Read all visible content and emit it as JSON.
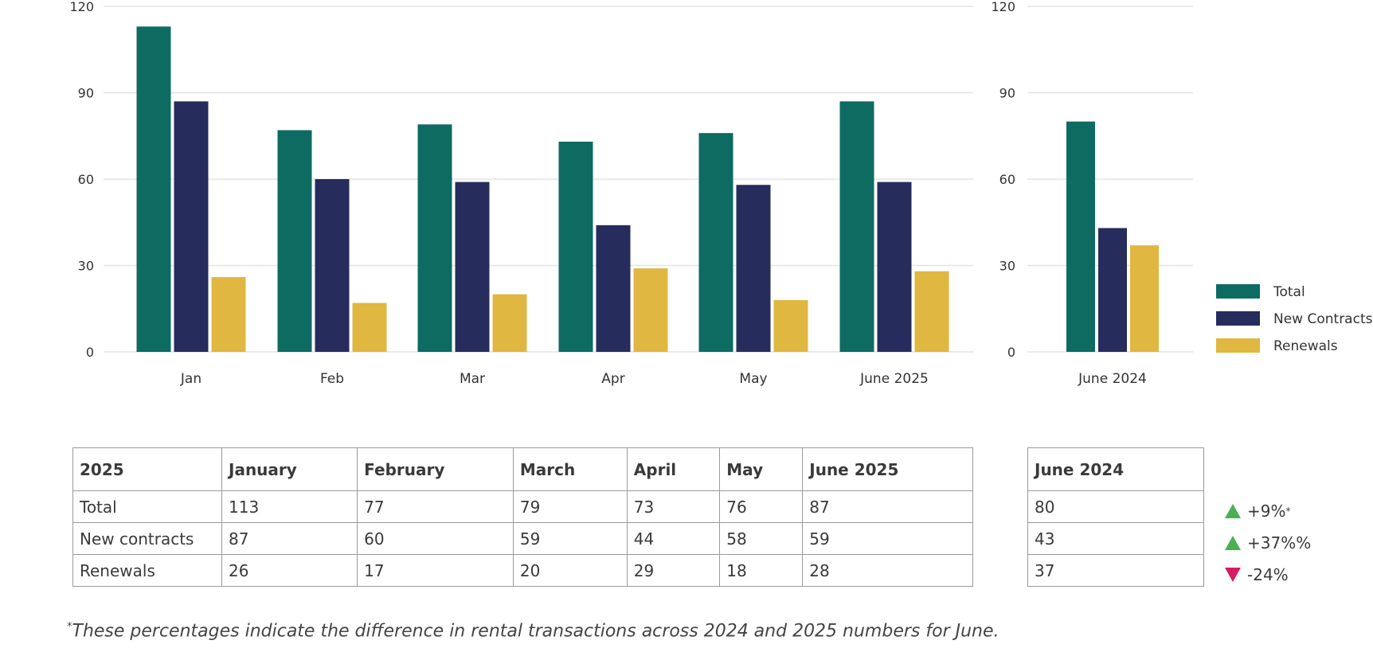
{
  "chart_data": [
    {
      "type": "bar",
      "categories": [
        "Jan",
        "Feb",
        "Mar",
        "Apr",
        "May",
        "June 2025"
      ],
      "series": [
        {
          "name": "Total",
          "values": [
            113,
            77,
            79,
            73,
            76,
            87
          ]
        },
        {
          "name": "New Contracts",
          "values": [
            87,
            60,
            59,
            44,
            58,
            59
          ]
        },
        {
          "name": "Renewals",
          "values": [
            26,
            17,
            20,
            29,
            18,
            28
          ]
        }
      ],
      "yticks": [
        "0",
        "30",
        "60",
        "90",
        "120"
      ],
      "ylim": [
        0,
        120
      ],
      "grid": true
    },
    {
      "type": "bar",
      "categories": [
        "June 2024"
      ],
      "series": [
        {
          "name": "Total",
          "values": [
            80
          ]
        },
        {
          "name": "New Contracts",
          "values": [
            43
          ]
        },
        {
          "name": "Renewals",
          "values": [
            37
          ]
        }
      ],
      "yticks": [
        "0",
        "30",
        "60",
        "90",
        "120"
      ],
      "ylim": [
        0,
        120
      ],
      "grid": true
    }
  ],
  "colors": {
    "total": "#0d6b62",
    "new_contracts": "#262c5c",
    "renewals": "#e0b740",
    "grid": "#e3e3e3",
    "up": "#4caf50",
    "down": "#d81b60"
  },
  "legend": {
    "placement": "right",
    "items": [
      "Total",
      "New Contracts",
      "Renewals"
    ]
  },
  "table": {
    "headers": [
      "2025",
      "January",
      "February",
      "March",
      "April",
      "May",
      "June 2025"
    ],
    "rows": [
      [
        "Total",
        "113",
        "77",
        "79",
        "73",
        "76",
        "87"
      ],
      [
        "New contracts",
        "87",
        "60",
        "59",
        "44",
        "58",
        "59"
      ],
      [
        "Renewals",
        "26",
        "17",
        "20",
        "29",
        "18",
        "28"
      ]
    ]
  },
  "ref_table": {
    "header": "June 2024",
    "rows": [
      "80",
      "43",
      "37"
    ]
  },
  "changes": [
    {
      "direction": "up",
      "text": "+9%",
      "note": "*"
    },
    {
      "direction": "up",
      "text": "+37%%",
      "note": ""
    },
    {
      "direction": "down",
      "text": "-24%",
      "note": ""
    }
  ],
  "footnote": {
    "marker": "*",
    "text": "These percentages indicate the difference in rental transactions across 2024 and 2025 numbers for June."
  }
}
